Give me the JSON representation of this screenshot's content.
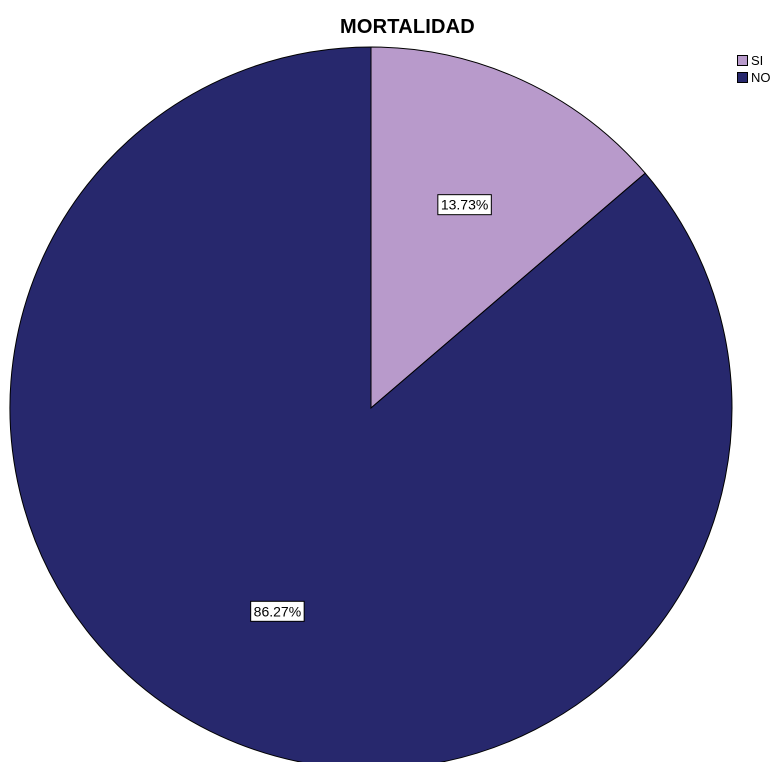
{
  "chart_data": {
    "type": "pie",
    "title": "MORTALIDAD",
    "categories": [
      "SI",
      "NO"
    ],
    "values": [
      13.73,
      86.27
    ],
    "labels": [
      "13.73%",
      "86.27%"
    ],
    "colors": [
      "#b89acb",
      "#27286d"
    ],
    "start_angle": "12 o'clock",
    "direction": "clockwise",
    "legend_position": "top-right",
    "legend": [
      {
        "label": "SI",
        "color": "#b89acb"
      },
      {
        "label": "NO",
        "color": "#27286d"
      }
    ]
  }
}
